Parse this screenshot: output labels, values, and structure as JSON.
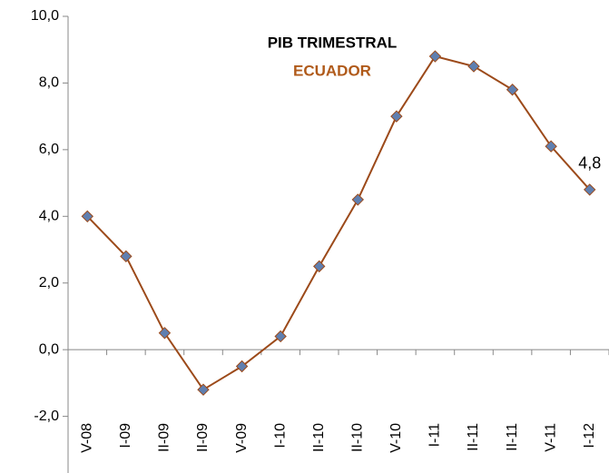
{
  "chart_data": {
    "type": "line",
    "title": "PIB TRIMESTRAL",
    "subtitle": "ECUADOR",
    "categories": [
      "V-08",
      "I-09",
      "II-09",
      "II-09",
      "V-09",
      "I-10",
      "II-10",
      "II-10",
      "V-10",
      "I-11",
      "II-11",
      "II-11",
      "V-11",
      "I-12"
    ],
    "series": [
      {
        "name": "PIB TRIMESTRAL",
        "color": "#9c4a1a",
        "marker_color": "#5f7fb0",
        "values": [
          4.0,
          2.8,
          0.5,
          -1.2,
          -0.5,
          0.4,
          2.5,
          4.5,
          7.0,
          8.8,
          8.5,
          7.8,
          6.1,
          4.8
        ],
        "value_labels": [
          null,
          null,
          null,
          null,
          null,
          null,
          null,
          null,
          null,
          null,
          null,
          null,
          null,
          "4,8"
        ]
      }
    ],
    "ylim": [
      -3.7,
      10
    ],
    "yticks": [
      {
        "value": -2,
        "label": "-2,0"
      },
      {
        "value": 0,
        "label": "0,0"
      },
      {
        "value": 2,
        "label": "2,0"
      },
      {
        "value": 4,
        "label": "4,0"
      },
      {
        "value": 6,
        "label": "6,0"
      },
      {
        "value": 8,
        "label": "8,0"
      },
      {
        "value": 10,
        "label": "10,0"
      }
    ],
    "grid": false
  }
}
